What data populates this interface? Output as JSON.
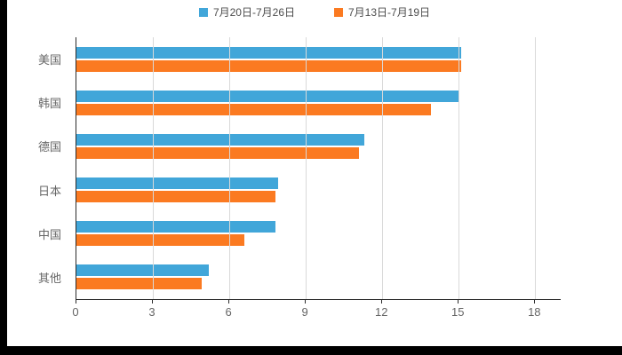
{
  "chart_data": {
    "type": "bar",
    "orientation": "horizontal",
    "title": "",
    "categories": [
      "美国",
      "韩国",
      "德国",
      "日本",
      "中国",
      "其他"
    ],
    "series": [
      {
        "name": "7月20日-7月26日",
        "color": "#41a6d9",
        "values": [
          15.1,
          15.0,
          11.3,
          7.9,
          7.8,
          5.2
        ]
      },
      {
        "name": "7月13日-7月19日",
        "color": "#fb7a21",
        "values": [
          15.1,
          13.9,
          11.1,
          7.8,
          6.6,
          4.9
        ]
      }
    ],
    "xlim": [
      0,
      19
    ],
    "xticks": [
      0,
      3,
      6,
      9,
      12,
      15,
      18
    ],
    "grid": true,
    "legend_position": "top",
    "colors": {
      "background": "#000000",
      "panel": "#ffffff",
      "gridline": "#d9d9d9",
      "axis": "#2b2b2b",
      "tick_text": "#666666",
      "legend_text": "#4d4d4d"
    }
  }
}
